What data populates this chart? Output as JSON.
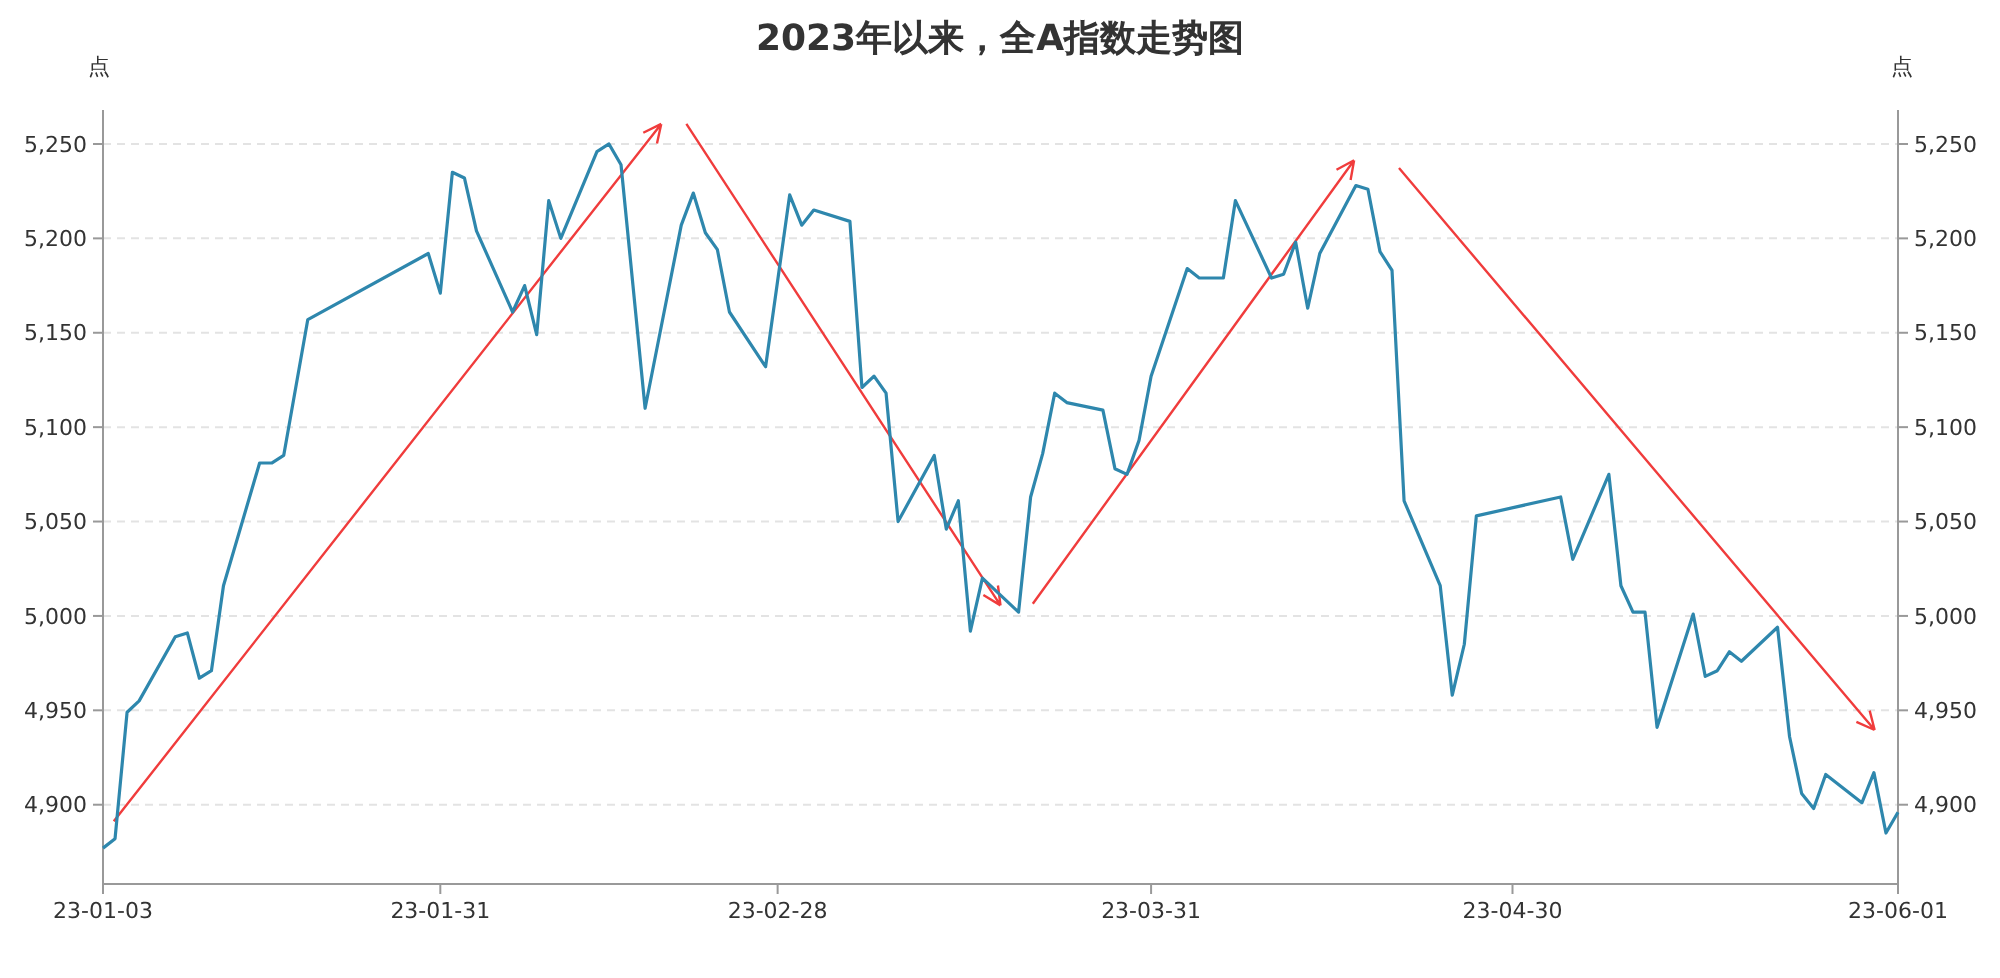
{
  "chart_data": {
    "type": "line",
    "title": "2023年以来，全A指数走势图",
    "ylabel": "点",
    "y2label": "点",
    "xlim": [
      "2023-01-03",
      "2023-06-01"
    ],
    "xticks": [
      {
        "value": "2023-01-03",
        "label": "23-01-03"
      },
      {
        "value": "2023-01-31",
        "label": "23-01-31"
      },
      {
        "value": "2023-02-28",
        "label": "23-02-28"
      },
      {
        "value": "2023-03-31",
        "label": "23-03-31"
      },
      {
        "value": "2023-04-30",
        "label": "23-04-30"
      },
      {
        "value": "2023-06-01",
        "label": "23-06-01"
      }
    ],
    "ylim": [
      4858,
      5268
    ],
    "yticks": [
      {
        "value": 4900,
        "label": "4,900"
      },
      {
        "value": 4950,
        "label": "4,950"
      },
      {
        "value": 5000,
        "label": "5,000"
      },
      {
        "value": 5050,
        "label": "5,050"
      },
      {
        "value": 5100,
        "label": "5,100"
      },
      {
        "value": 5150,
        "label": "5,150"
      },
      {
        "value": 5200,
        "label": "5,200"
      },
      {
        "value": 5250,
        "label": "5,250"
      }
    ],
    "y2lim": [
      4858,
      5268
    ],
    "y2ticks": [
      {
        "value": 4900,
        "label": "4,900"
      },
      {
        "value": 4950,
        "label": "4,950"
      },
      {
        "value": 5000,
        "label": "5,000"
      },
      {
        "value": 5050,
        "label": "5,050"
      },
      {
        "value": 5100,
        "label": "5,100"
      },
      {
        "value": 5150,
        "label": "5,150"
      },
      {
        "value": 5200,
        "label": "5,200"
      },
      {
        "value": 5250,
        "label": "5,250"
      }
    ],
    "grid": "y",
    "marker": "none",
    "line_style": "solid",
    "series": [
      {
        "color": "#2e87ad",
        "x": [
          "2023-01-03",
          "2023-01-04",
          "2023-01-05",
          "2023-01-06",
          "2023-01-09",
          "2023-01-10",
          "2023-01-11",
          "2023-01-12",
          "2023-01-13",
          "2023-01-16",
          "2023-01-17",
          "2023-01-18",
          "2023-01-20",
          "2023-01-30",
          "2023-01-31",
          "2023-02-01",
          "2023-02-02",
          "2023-02-03",
          "2023-02-06",
          "2023-02-07",
          "2023-02-08",
          "2023-02-09",
          "2023-02-10",
          "2023-02-13",
          "2023-02-14",
          "2023-02-15",
          "2023-02-17",
          "2023-02-20",
          "2023-02-21",
          "2023-02-22",
          "2023-02-23",
          "2023-02-24",
          "2023-02-27",
          "2023-03-01",
          "2023-03-02",
          "2023-03-03",
          "2023-03-06",
          "2023-03-07",
          "2023-03-08",
          "2023-03-09",
          "2023-03-10",
          "2023-03-13",
          "2023-03-14",
          "2023-03-15",
          "2023-03-16",
          "2023-03-17",
          "2023-03-20",
          "2023-03-21",
          "2023-03-22",
          "2023-03-23",
          "2023-03-24",
          "2023-03-27",
          "2023-03-28",
          "2023-03-29",
          "2023-03-30",
          "2023-03-31",
          "2023-04-03",
          "2023-04-04",
          "2023-04-06",
          "2023-04-07",
          "2023-04-10",
          "2023-04-11",
          "2023-04-12",
          "2023-04-13",
          "2023-04-14",
          "2023-04-17",
          "2023-04-18",
          "2023-04-19",
          "2023-04-20",
          "2023-04-21",
          "2023-04-24",
          "2023-04-25",
          "2023-04-26",
          "2023-04-27",
          "2023-05-04",
          "2023-05-05",
          "2023-05-08",
          "2023-05-09",
          "2023-05-10",
          "2023-05-11",
          "2023-05-12",
          "2023-05-15",
          "2023-05-16",
          "2023-05-17",
          "2023-05-18",
          "2023-05-19",
          "2023-05-22",
          "2023-05-23",
          "2023-05-24",
          "2023-05-25",
          "2023-05-26",
          "2023-05-29",
          "2023-05-30",
          "2023-05-31",
          "2023-06-01"
        ],
        "values": [
          4877,
          4882,
          4949,
          4955,
          4989,
          4991,
          4967,
          4971,
          5016,
          5081,
          5081,
          5085,
          5157,
          5192,
          5171,
          5235,
          5232,
          5204,
          5161,
          5175,
          5149,
          5220,
          5200,
          5246,
          5250,
          5239,
          5110,
          5207,
          5224,
          5203,
          5194,
          5161,
          5132,
          5223,
          5207,
          5215,
          5209,
          5121,
          5127,
          5118,
          5050,
          5085,
          5046,
          5061,
          4992,
          5020,
          5002,
          5063,
          5086,
          5118,
          5113,
          5109,
          5078,
          5075,
          5093,
          5127,
          5184,
          5179,
          5179,
          5220,
          5179,
          5181,
          5198,
          5163,
          5192,
          5228,
          5226,
          5193,
          5183,
          5061,
          5016,
          4958,
          4985,
          5053,
          5063,
          5030,
          5075,
          5016,
          5002,
          5002,
          4941,
          5001,
          4968,
          4971,
          4981,
          4976,
          4994,
          4936,
          4906,
          4898,
          4916,
          4901,
          4917,
          4885,
          4896
        ]
      }
    ]
  }
}
